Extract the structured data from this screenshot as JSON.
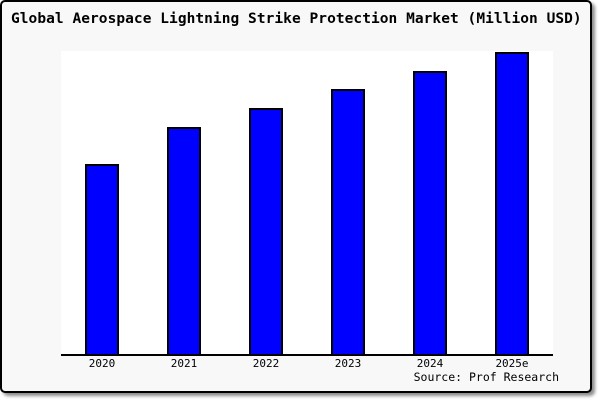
{
  "source_credit": "Source: Prof Research",
  "colors": {
    "card_background": "#f8f8f8",
    "plot_background": "#ffffff",
    "bar_fill": "#0000ff",
    "bar_border": "#000000",
    "axis": "#000000",
    "text": "#000000"
  },
  "chart_data": {
    "type": "bar",
    "title": "Global Aerospace Lightning Strike Protection Market (Million USD)",
    "categories": [
      "2020",
      "2021",
      "2022",
      "2023",
      "2024",
      "2025e"
    ],
    "values": [
      63,
      75.1,
      81.5,
      87.7,
      93.7,
      100
    ],
    "xlabel": "",
    "ylabel": "",
    "ylim": [
      0,
      100
    ],
    "value_note": "no y-axis ticks shown in chart; values are bar heights relative to 2025e = 100",
    "grid": false,
    "legend": "none",
    "bar_color": "#0000ff",
    "bar_border_color": "#000000"
  }
}
